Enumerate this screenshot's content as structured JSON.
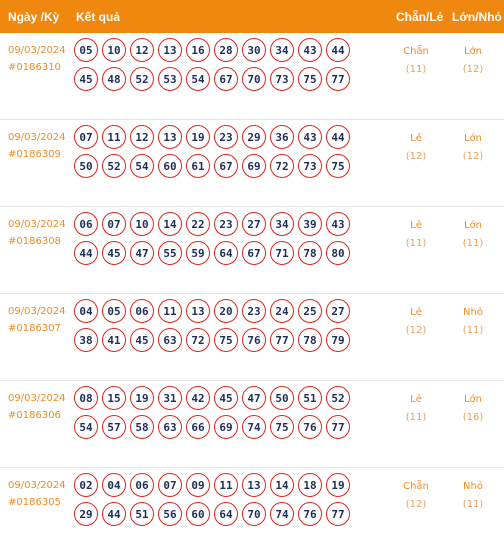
{
  "header": {
    "date_col": "Ngày /Kỳ",
    "result_col": "Kết quả",
    "odd_even_col": "Chẵn/Lẻ",
    "big_small_col": "Lớn/Nhỏ"
  },
  "colors": {
    "header_bg": "#f0880f",
    "accent": "#f08c22",
    "ball_border": "#d9261c",
    "ball_text": "#1f2d58"
  },
  "draws": [
    {
      "date": "09/03/2024",
      "id": "#0186310",
      "numbers": [
        "05",
        "10",
        "12",
        "13",
        "16",
        "28",
        "30",
        "34",
        "43",
        "44",
        "45",
        "48",
        "52",
        "53",
        "54",
        "67",
        "70",
        "73",
        "75",
        "77"
      ],
      "odd_even": "Chẵn",
      "odd_even_count": "(11)",
      "big_small": "Lớn",
      "big_small_count": "(12)"
    },
    {
      "date": "09/03/2024",
      "id": "#0186309",
      "numbers": [
        "07",
        "11",
        "12",
        "13",
        "19",
        "23",
        "29",
        "36",
        "43",
        "44",
        "50",
        "52",
        "54",
        "60",
        "61",
        "67",
        "69",
        "72",
        "73",
        "75"
      ],
      "odd_even": "Lẻ",
      "odd_even_count": "(12)",
      "big_small": "Lớn",
      "big_small_count": "(12)"
    },
    {
      "date": "09/03/2024",
      "id": "#0186308",
      "numbers": [
        "06",
        "07",
        "10",
        "14",
        "22",
        "23",
        "27",
        "34",
        "39",
        "43",
        "44",
        "45",
        "47",
        "55",
        "59",
        "64",
        "67",
        "71",
        "78",
        "80"
      ],
      "odd_even": "Lẻ",
      "odd_even_count": "(11)",
      "big_small": "Lớn",
      "big_small_count": "(11)"
    },
    {
      "date": "09/03/2024",
      "id": "#0186307",
      "numbers": [
        "04",
        "05",
        "06",
        "11",
        "13",
        "20",
        "23",
        "24",
        "25",
        "27",
        "38",
        "41",
        "45",
        "63",
        "72",
        "75",
        "76",
        "77",
        "78",
        "79"
      ],
      "odd_even": "Lẻ",
      "odd_even_count": "(12)",
      "big_small": "Nhỏ",
      "big_small_count": "(11)"
    },
    {
      "date": "09/03/2024",
      "id": "#0186306",
      "numbers": [
        "08",
        "15",
        "19",
        "31",
        "42",
        "45",
        "47",
        "50",
        "51",
        "52",
        "54",
        "57",
        "58",
        "63",
        "66",
        "69",
        "74",
        "75",
        "76",
        "77"
      ],
      "odd_even": "Lẻ",
      "odd_even_count": "(11)",
      "big_small": "Lớn",
      "big_small_count": "(16)"
    },
    {
      "date": "09/03/2024",
      "id": "#0186305",
      "numbers": [
        "02",
        "04",
        "06",
        "07",
        "09",
        "11",
        "13",
        "14",
        "18",
        "19",
        "29",
        "44",
        "51",
        "56",
        "60",
        "64",
        "70",
        "74",
        "76",
        "77"
      ],
      "odd_even": "Chẵn",
      "odd_even_count": "(12)",
      "big_small": "Nhỏ",
      "big_small_count": "(11)"
    }
  ]
}
